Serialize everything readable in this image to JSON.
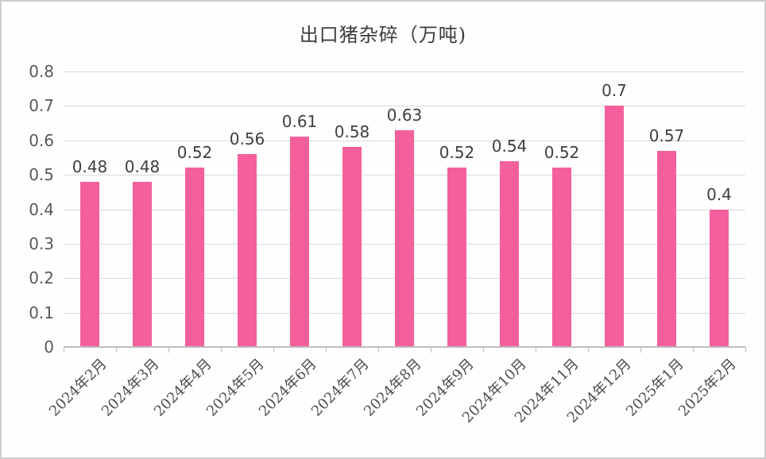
{
  "title": "出口猪杂碎（万吨)",
  "colors": {
    "bar": "#f4609b",
    "gridline": "#d9d9d9",
    "axis": "#bfbfbf",
    "value_label": "#3f3f3f",
    "tick_label": "#595959",
    "frame_border": "#cdcdcd",
    "background": "#fefefe"
  },
  "chart_data": {
    "type": "bar",
    "title": "出口猪杂碎（万吨)",
    "categories": [
      "2024年2月",
      "2024年3月",
      "2024年4月",
      "2024年5月",
      "2024年6月",
      "2024年7月",
      "2024年8月",
      "2024年9月",
      "2024年10月",
      "2024年11月",
      "2024年12月",
      "2025年1月",
      "2025年2月"
    ],
    "values": [
      0.48,
      0.48,
      0.52,
      0.56,
      0.61,
      0.58,
      0.63,
      0.52,
      0.54,
      0.52,
      0.7,
      0.57,
      0.4
    ],
    "value_labels": [
      "0.48",
      "0.48",
      "0.52",
      "0.56",
      "0.61",
      "0.58",
      "0.63",
      "0.52",
      "0.54",
      "0.52",
      "0.7",
      "0.57",
      "0.4"
    ],
    "xlabel": "",
    "ylabel": "",
    "ylim": [
      0,
      0.8
    ],
    "yticks": [
      0,
      0.1,
      0.2,
      0.3,
      0.4,
      0.5,
      0.6,
      0.7,
      0.8
    ],
    "ytick_labels": [
      "0",
      "0.1",
      "0.2",
      "0.3",
      "0.4",
      "0.5",
      "0.6",
      "0.7",
      "0.8"
    ],
    "grid": true,
    "legend": "none",
    "x_label_rotation_deg": 45
  }
}
